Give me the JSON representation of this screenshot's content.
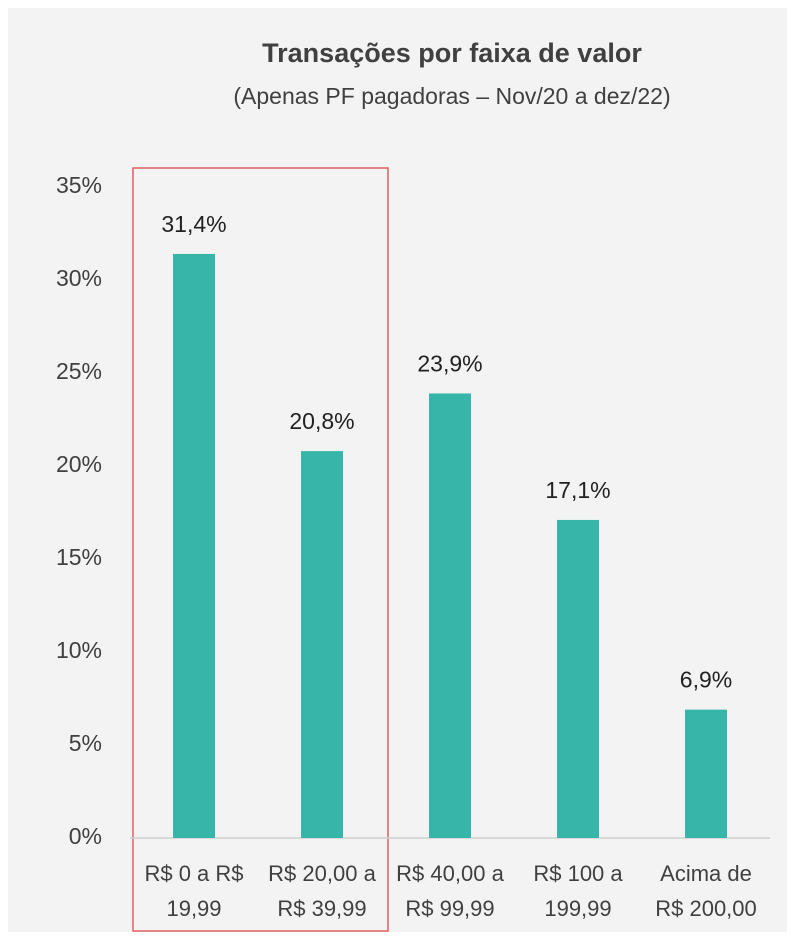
{
  "chart_data": {
    "type": "bar",
    "title": "Transações por faixa de valor",
    "subtitle": "(Apenas PF pagadoras – Nov/20 a dez/22)",
    "categories": [
      [
        "R$ 0 a R$",
        "19,99"
      ],
      [
        "R$ 20,00 a",
        "R$ 39,99"
      ],
      [
        "R$ 40,00 a",
        "R$ 99,99"
      ],
      [
        "R$ 100 a",
        "199,99"
      ],
      [
        "Acima de",
        "R$ 200,00"
      ]
    ],
    "values": [
      31.4,
      20.8,
      23.9,
      17.1,
      6.9
    ],
    "value_labels": [
      "31,4%",
      "20,8%",
      "23,9%",
      "17,1%",
      "6,9%"
    ],
    "color": "#36b5a8",
    "ylim": [
      0,
      35
    ],
    "yticks": [
      {
        "value": 0,
        "label": "0%"
      },
      {
        "value": 5,
        "label": "5%"
      },
      {
        "value": 10,
        "label": "10%"
      },
      {
        "value": 15,
        "label": "15%"
      },
      {
        "value": 20,
        "label": "20%"
      },
      {
        "value": 25,
        "label": "25%"
      },
      {
        "value": 30,
        "label": "30%"
      },
      {
        "value": 35,
        "label": "35%"
      }
    ],
    "grid": false
  }
}
